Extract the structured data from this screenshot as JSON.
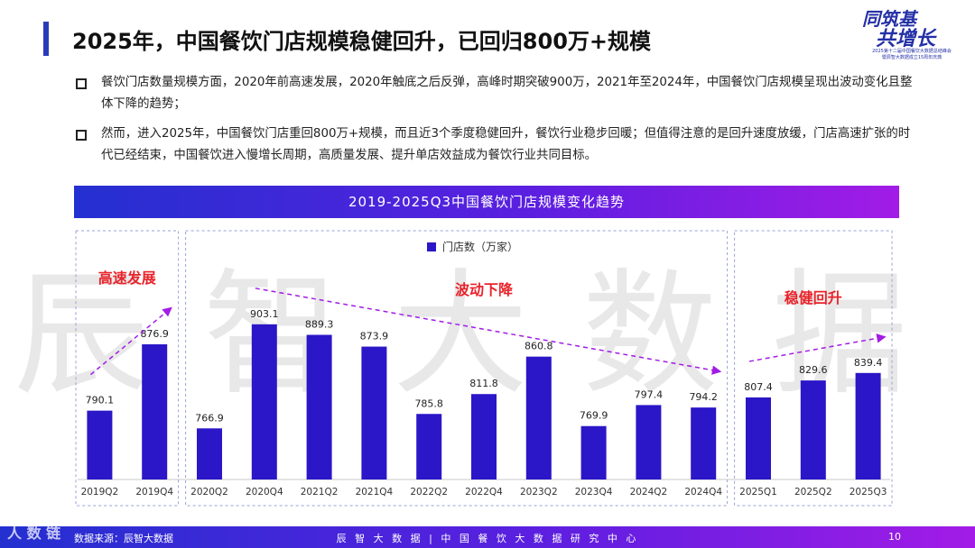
{
  "header": {
    "title": "2025年，中国餐饮门店规模稳健回升，已回归800万+规模"
  },
  "logo": {
    "line1": "同筑基",
    "line2": "共增长",
    "line3": "2025第十二届中国餐饮大数据总结峰会",
    "line4": "暨辰智大数据成立15周年庆典"
  },
  "bullets": [
    "餐饮门店数量规模方面，2020年前高速发展，2020年触底之后反弹，高峰时期突破900万，2021年至2024年，中国餐饮门店规模呈现出波动变化且整体下降的趋势；",
    "然而，进入2025年，中国餐饮门店重回800万+规模，而且近3个季度稳健回升，餐饮行业稳步回暖；但值得注意的是回升速度放缓，门店高速扩张的时代已经结束，中国餐饮进入慢增长周期，高质量发展、提升单店效益成为餐饮行业共同目标。"
  ],
  "chart_header": "2019-2025Q3中国餐饮门店规模变化趋势",
  "watermark": "辰智大数据",
  "chart_data": {
    "type": "bar",
    "title": "2019-2025Q3中国餐饮门店规模变化趋势",
    "legend": "门店数（万家）",
    "legend_position": "top",
    "grid": false,
    "categories": [
      "2019Q2",
      "2019Q4",
      "2020Q2",
      "2020Q4",
      "2021Q2",
      "2021Q4",
      "2022Q2",
      "2022Q4",
      "2023Q2",
      "2023Q4",
      "2024Q2",
      "2024Q4",
      "2025Q1",
      "2025Q2",
      "2025Q3"
    ],
    "series": [
      {
        "name": "门店数（万家）",
        "values": [
          790.1,
          876.9,
          766.9,
          903.1,
          889.3,
          873.9,
          785.8,
          811.8,
          860.8,
          769.9,
          797.4,
          794.2,
          807.4,
          829.6,
          839.4
        ]
      }
    ],
    "value_labels": [
      "790.1",
      "876.9",
      "766.9",
      "903.1",
      "889.3",
      "873.9",
      "785.8",
      "811.8",
      "860.8",
      "769.9",
      "797.4",
      "794.2",
      "807.4",
      "829.6",
      "839.4"
    ],
    "ylim": [
      700,
      930
    ],
    "bar_color": "#2b16c8",
    "annotations": [
      "高速发展",
      "波动下降",
      "稳健回升"
    ],
    "annotation_color": "#e8232a",
    "trend_color": "#a21ce6"
  },
  "footer": {
    "left": "数据来源：辰智大数据",
    "center": "辰 智 大 数 据  |  中 国 餐 饮 大 数 据 研 究 中 心",
    "page": "10",
    "corner": "人 数 链"
  }
}
